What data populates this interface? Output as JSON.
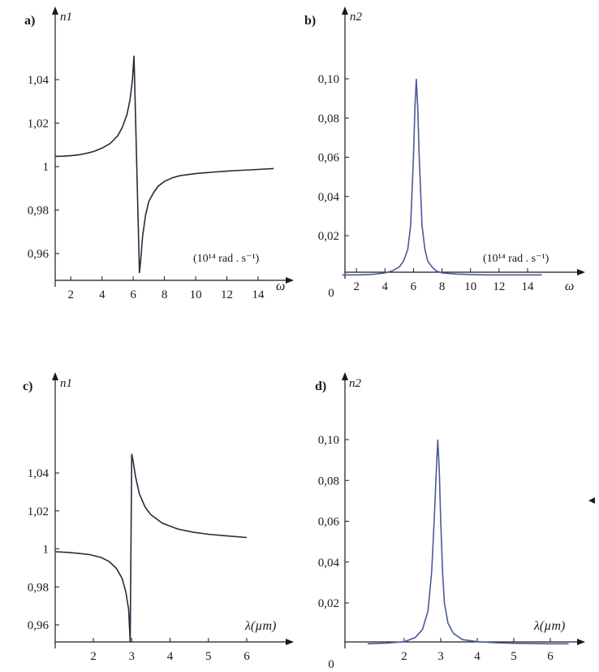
{
  "chart_data": [
    {
      "type": "line",
      "panel_label": "a)",
      "ylabel": "n1",
      "xlabel": "ω",
      "unit_note": "(10¹⁴ rad . s⁻¹)",
      "xticks": [
        "2",
        "4",
        "6",
        "8",
        "10",
        "12",
        "14"
      ],
      "yticks": [
        "0,96",
        "0,98",
        "1",
        "1,02",
        "1,04"
      ],
      "xlim": [
        1,
        16
      ],
      "ylim": [
        0.945,
        1.065
      ],
      "series": [
        {
          "x": [
            1,
            1.5,
            2,
            2.5,
            3,
            3.5,
            4,
            4.5,
            5,
            5.3,
            5.6,
            5.8,
            5.95,
            6.05,
            6.4,
            6.5,
            6.6,
            6.8,
            7,
            7.3,
            7.6,
            8,
            8.5,
            9,
            10,
            11,
            12,
            13,
            14,
            15
          ],
          "values": [
            1.0047,
            1.0048,
            1.005,
            1.0054,
            1.0061,
            1.007,
            1.0085,
            1.0105,
            1.0141,
            1.018,
            1.024,
            1.031,
            1.04,
            1.051,
            0.951,
            0.959,
            0.968,
            0.978,
            0.984,
            0.988,
            0.991,
            0.9932,
            0.9948,
            0.9958,
            0.9968,
            0.9974,
            0.9979,
            0.9983,
            0.9987,
            0.9991
          ]
        }
      ]
    },
    {
      "type": "line",
      "panel_label": "b)",
      "ylabel": "n2",
      "xlabel": "ω",
      "unit_note": "(10¹⁴ rad . s⁻¹)",
      "xticks": [
        "0",
        "2",
        "4",
        "6",
        "8",
        "10",
        "12",
        "14"
      ],
      "yticks": [
        "0,02",
        "0,04",
        "0,06",
        "0,08",
        "0,10"
      ],
      "xlim": [
        1,
        16
      ],
      "ylim": [
        0,
        0.12
      ],
      "series": [
        {
          "x": [
            1,
            2,
            3,
            3.5,
            4,
            4.5,
            5,
            5.3,
            5.6,
            5.8,
            6,
            6.1,
            6.2,
            6.3,
            6.4,
            6.6,
            6.8,
            7,
            7.3,
            7.6,
            8,
            9,
            10,
            11,
            12,
            13,
            14,
            15
          ],
          "values": [
            0,
            0,
            0.0002,
            0.0005,
            0.001,
            0.002,
            0.004,
            0.007,
            0.013,
            0.025,
            0.06,
            0.085,
            0.1,
            0.085,
            0.06,
            0.025,
            0.013,
            0.007,
            0.004,
            0.002,
            0.001,
            0.0004,
            0.0002,
            0,
            0,
            0,
            0,
            0
          ]
        }
      ]
    },
    {
      "type": "line",
      "panel_label": "c)",
      "ylabel": "n1",
      "xlabel": "λ(µm)",
      "xticks": [
        "2",
        "3",
        "4",
        "5",
        "6"
      ],
      "yticks": [
        "0,96",
        "0,98",
        "1",
        "1,02",
        "1,04"
      ],
      "xlim": [
        1,
        7
      ],
      "ylim": [
        0.945,
        1.065
      ],
      "series": [
        {
          "x": [
            1,
            1.3,
            1.6,
            1.9,
            2.2,
            2.4,
            2.6,
            2.75,
            2.85,
            2.92,
            2.96,
            3.0,
            3.04,
            3.1,
            3.2,
            3.35,
            3.5,
            3.8,
            4.2,
            4.6,
            5,
            5.5,
            6
          ],
          "values": [
            0.9985,
            0.9982,
            0.9977,
            0.997,
            0.9955,
            0.9935,
            0.9898,
            0.9845,
            0.977,
            0.968,
            0.951,
            1.05,
            1.046,
            1.038,
            1.029,
            1.022,
            1.018,
            1.0135,
            1.0105,
            1.0088,
            1.0077,
            1.0068,
            1.006
          ]
        }
      ]
    },
    {
      "type": "line",
      "panel_label": "d)",
      "ylabel": "n2",
      "xlabel": "λ(µm)",
      "xticks": [
        "0",
        "2",
        "3",
        "4",
        "5",
        "6"
      ],
      "yticks": [
        "0,02",
        "0,04",
        "0,06",
        "0,08",
        "0,10"
      ],
      "xlim": [
        1,
        7
      ],
      "ylim": [
        0,
        0.12
      ],
      "series": [
        {
          "x": [
            1,
            1.5,
            2,
            2.3,
            2.5,
            2.65,
            2.75,
            2.82,
            2.88,
            2.92,
            2.96,
            3.0,
            3.05,
            3.1,
            3.2,
            3.35,
            3.6,
            4,
            4.5,
            5,
            6,
            6.5
          ],
          "values": [
            0,
            0.0003,
            0.001,
            0.003,
            0.007,
            0.016,
            0.035,
            0.06,
            0.085,
            0.1,
            0.085,
            0.06,
            0.035,
            0.02,
            0.01,
            0.005,
            0.002,
            0.001,
            0.0005,
            0.0002,
            0,
            0
          ]
        }
      ]
    }
  ]
}
